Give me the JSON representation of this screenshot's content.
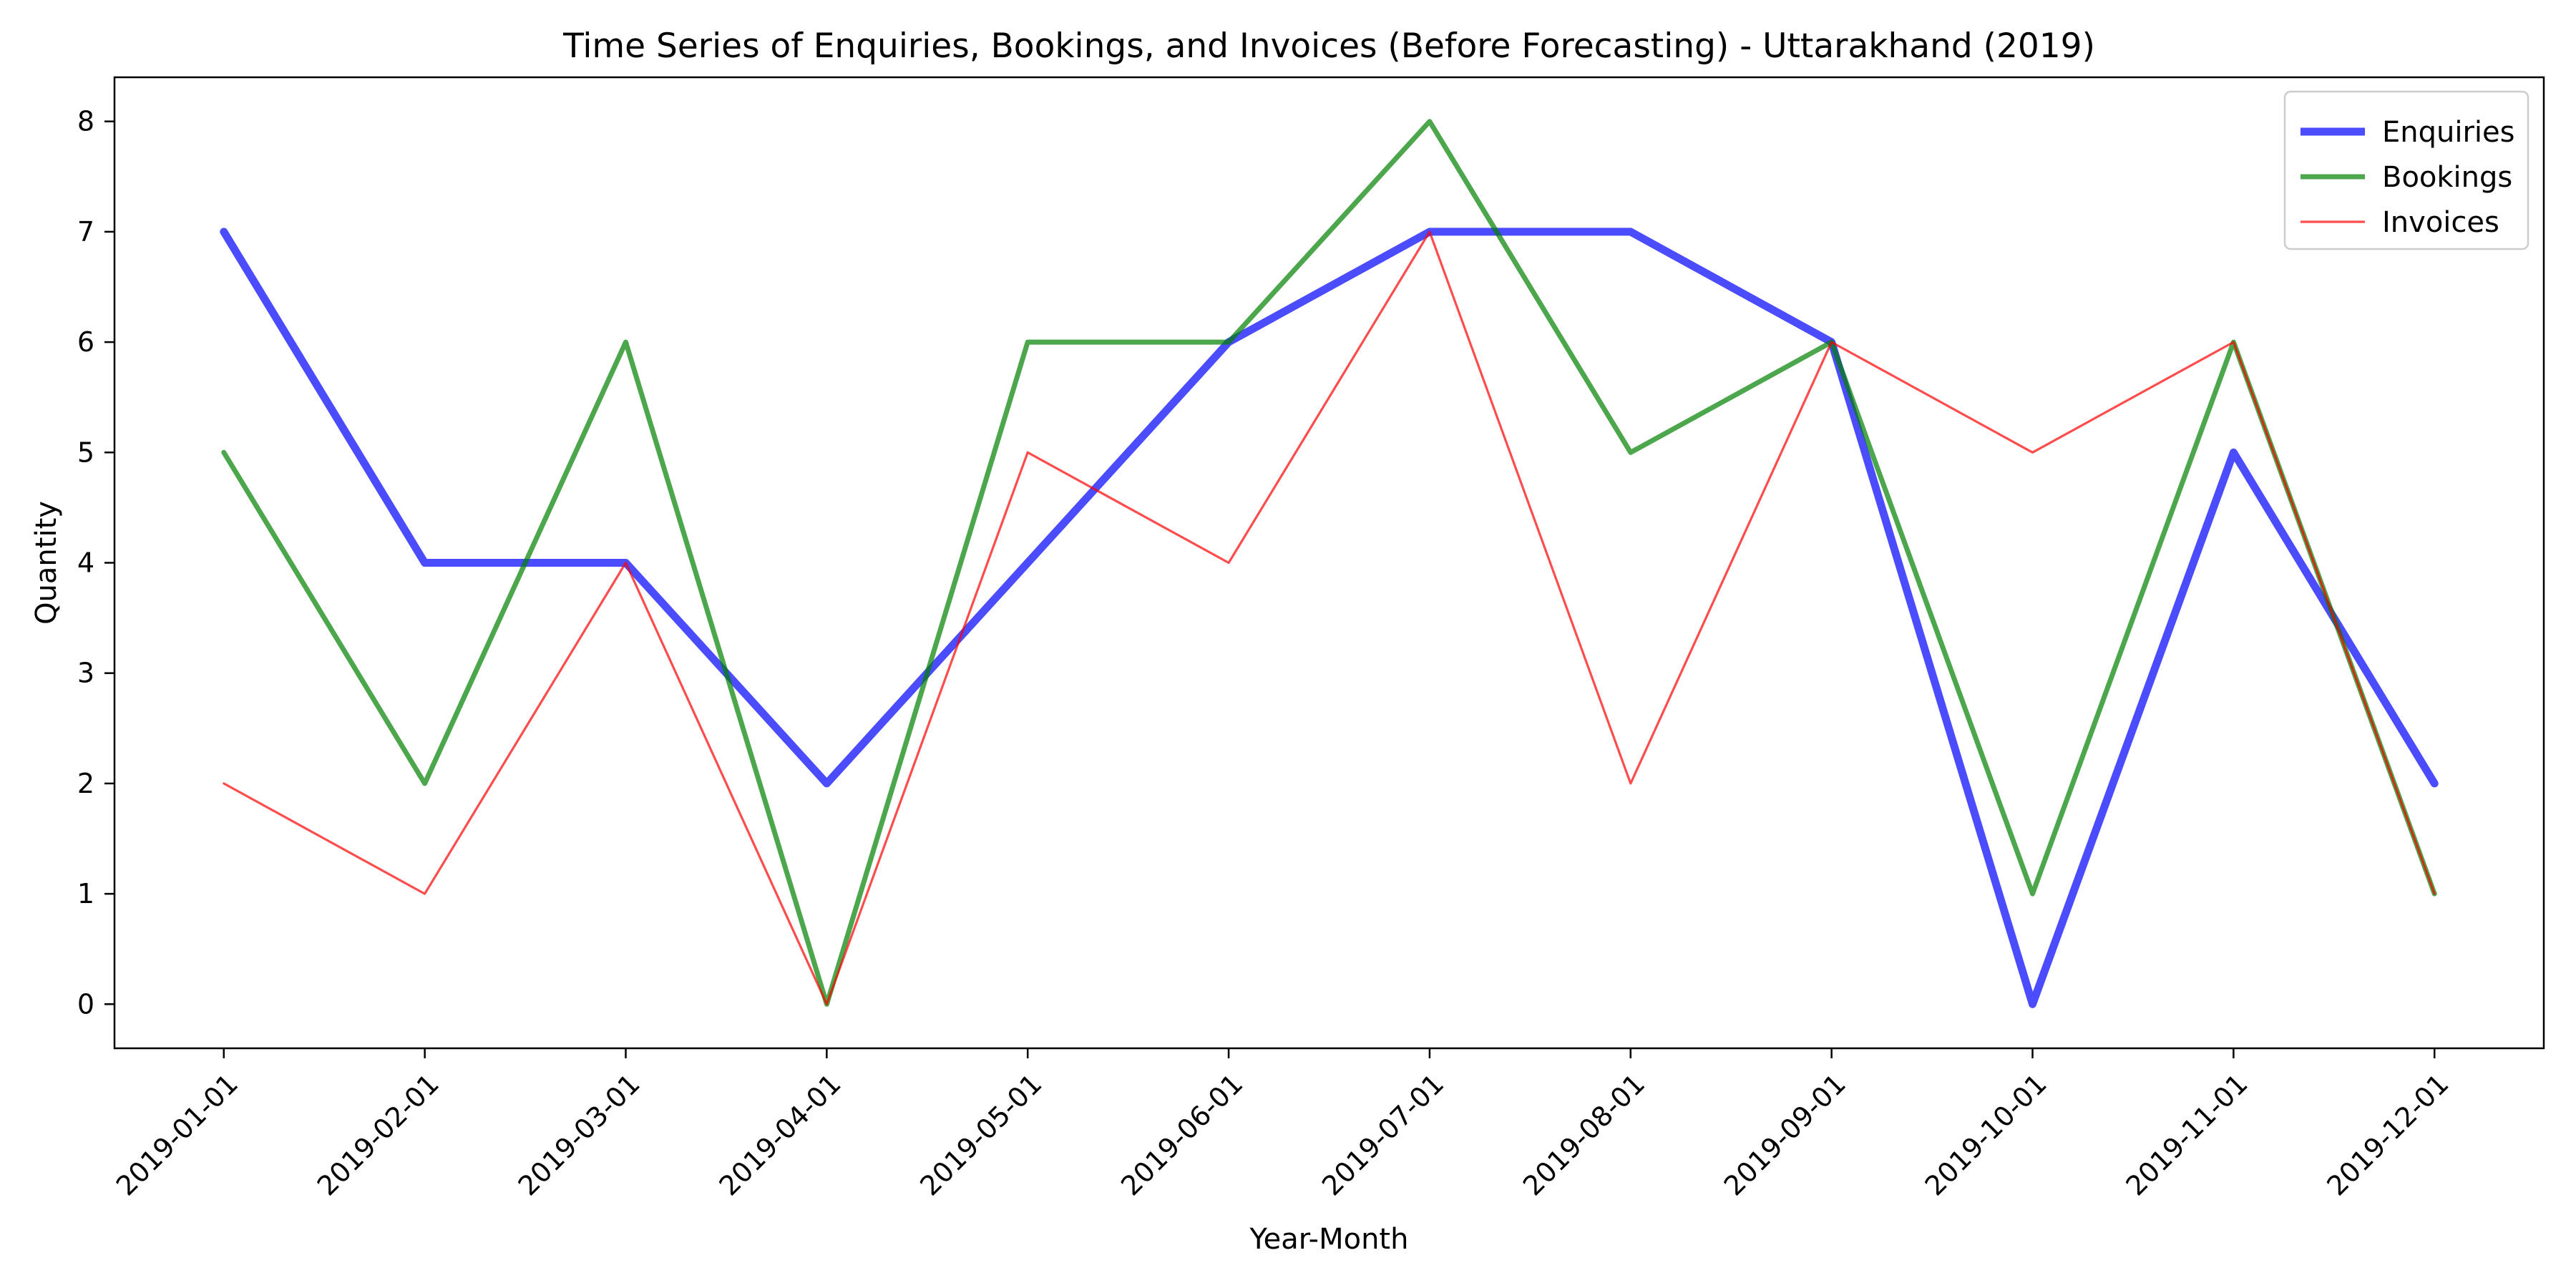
{
  "chart_data": {
    "type": "line",
    "title": "Time Series of Enquiries, Bookings, and Invoices (Before Forecasting) - Uttarakhand (2019)",
    "xlabel": "Year-Month",
    "ylabel": "Quantity",
    "categories": [
      "2019-01-01",
      "2019-02-01",
      "2019-03-01",
      "2019-04-01",
      "2019-05-01",
      "2019-06-01",
      "2019-07-01",
      "2019-08-01",
      "2019-09-01",
      "2019-10-01",
      "2019-11-01",
      "2019-12-01"
    ],
    "ylim": [
      -0.4,
      8.4
    ],
    "yticks": [
      0,
      1,
      2,
      3,
      4,
      5,
      6,
      7,
      8
    ],
    "grid": false,
    "legend_position": "top-right",
    "series": [
      {
        "name": "Enquiries",
        "color": "#0000ff",
        "alpha": 0.7,
        "line_width": "thick",
        "values": [
          7,
          4,
          4,
          2,
          4,
          6,
          7,
          7,
          6,
          0,
          5,
          2
        ]
      },
      {
        "name": "Bookings",
        "color": "#008000",
        "alpha": 0.7,
        "line_width": "medium",
        "values": [
          5,
          2,
          6,
          0,
          6,
          6,
          8,
          5,
          6,
          1,
          6,
          1
        ]
      },
      {
        "name": "Invoices",
        "color": "#ff0000",
        "alpha": 0.7,
        "line_width": "thin",
        "values": [
          2,
          1,
          4,
          0,
          5,
          4,
          7,
          2,
          6,
          5,
          6,
          1
        ]
      }
    ]
  }
}
